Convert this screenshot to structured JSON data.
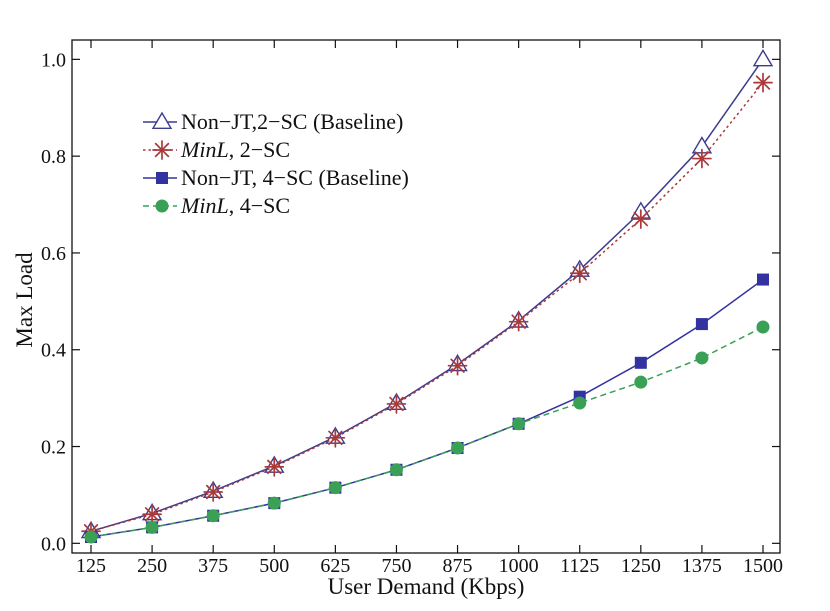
{
  "chart_data": {
    "type": "line",
    "xlabel": "User Demand (Kbps)",
    "ylabel": "Max Load",
    "categories": [
      "125",
      "250",
      "375",
      "500",
      "625",
      "750",
      "875",
      "1000",
      "1125",
      "1250",
      "1375",
      "1500"
    ],
    "yticks": [
      "0.0",
      "0.2",
      "0.4",
      "0.6",
      "0.8",
      "1.0"
    ],
    "ylim": [
      -0.02,
      1.04
    ],
    "grid": false,
    "legend_position": "top-left",
    "series": [
      {
        "name_parts": [
          "Non−JT,2−SC (Baseline)"
        ],
        "color": "#3b3b8f",
        "marker": "triangle-open",
        "line": "solid",
        "values": [
          0.025,
          0.062,
          0.108,
          0.16,
          0.22,
          0.29,
          0.37,
          0.46,
          0.565,
          0.685,
          0.82,
          1.0
        ]
      },
      {
        "name_parts": [
          "MinL",
          ", 2−SC"
        ],
        "color": "#a83a3a",
        "marker": "asterisk",
        "line": "dotted",
        "values": [
          0.025,
          0.06,
          0.106,
          0.158,
          0.218,
          0.288,
          0.367,
          0.458,
          0.558,
          0.67,
          0.795,
          0.952
        ]
      },
      {
        "name_parts": [
          "Non−JT, 4−SC (Baseline)"
        ],
        "color": "#3232a0",
        "marker": "square",
        "line": "solid",
        "values": [
          0.013,
          0.033,
          0.057,
          0.083,
          0.115,
          0.152,
          0.197,
          0.247,
          0.303,
          0.373,
          0.453,
          0.545
        ]
      },
      {
        "name_parts": [
          "MinL",
          ", 4−SC"
        ],
        "color": "#3aa055",
        "marker": "circle",
        "line": "dashed",
        "values": [
          0.013,
          0.033,
          0.057,
          0.083,
          0.115,
          0.152,
          0.197,
          0.247,
          0.29,
          0.333,
          0.383,
          0.447
        ]
      }
    ]
  }
}
